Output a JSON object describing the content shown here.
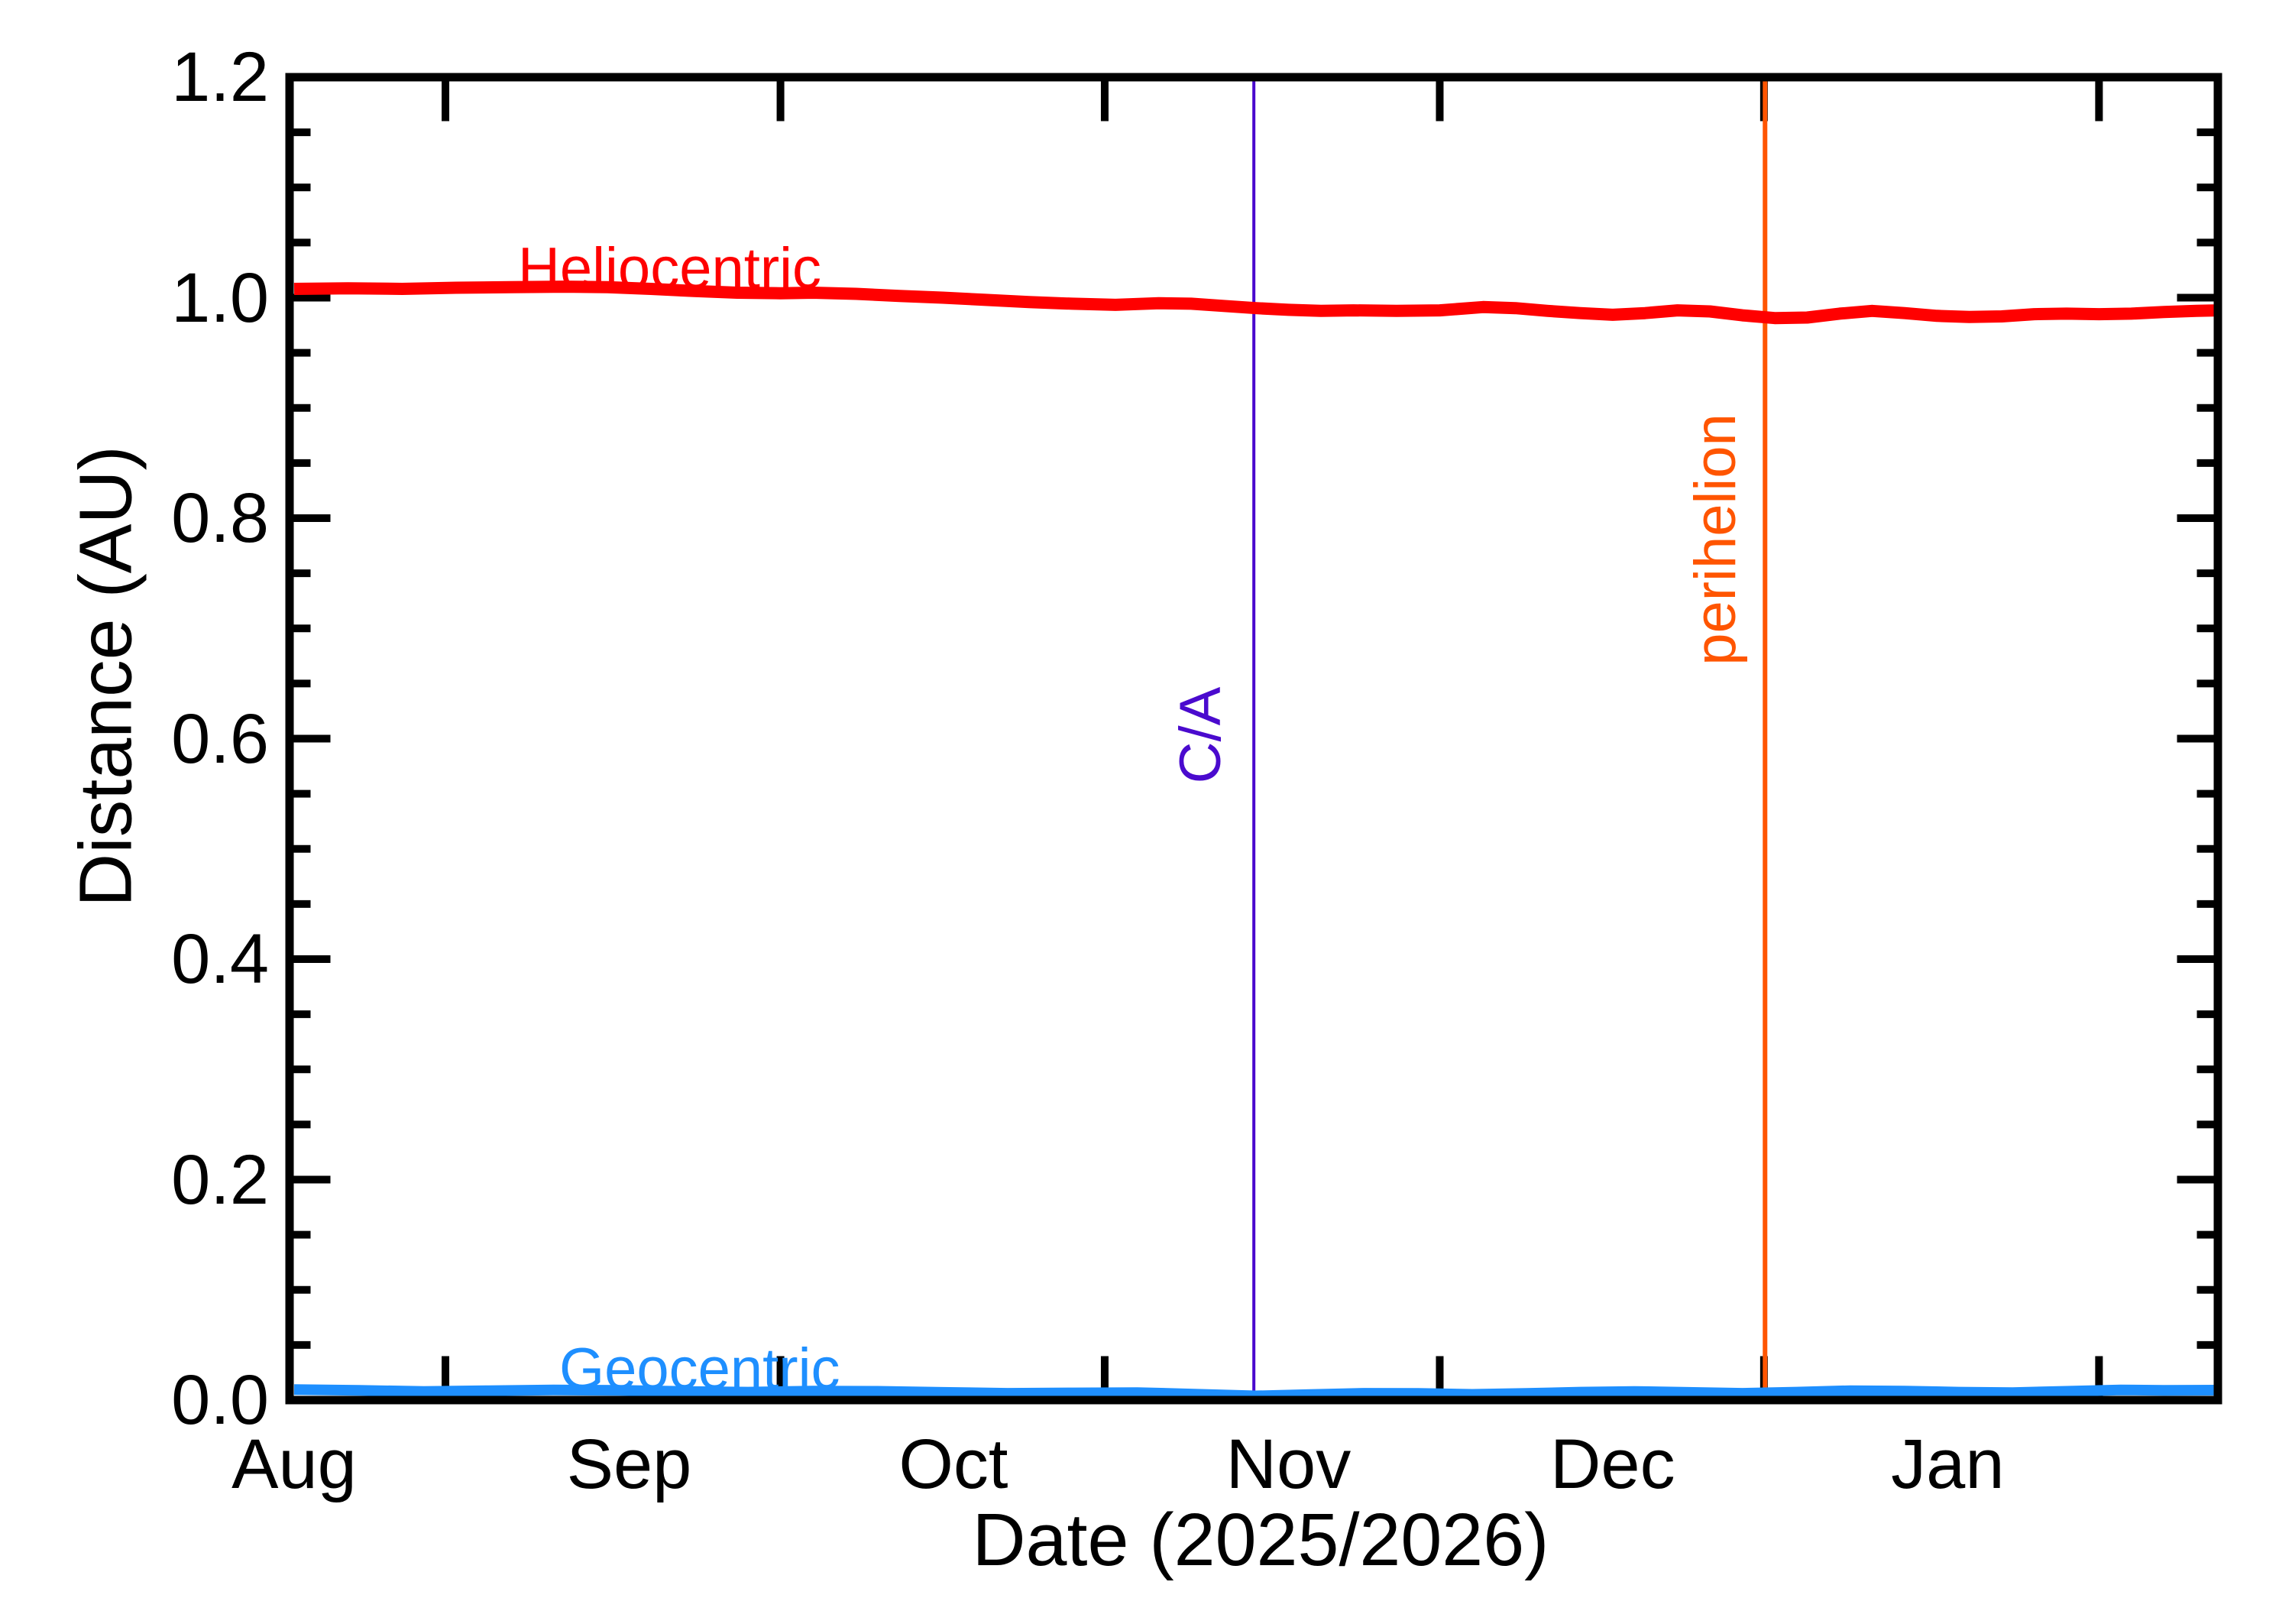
{
  "chart_data": {
    "type": "line",
    "title": "",
    "xlabel": "Date (2025/2026)",
    "ylabel": "Distance (AU)",
    "grid": "off",
    "legend": "inline-curve-labels",
    "x_axis": {
      "start": "Aug 1 2025",
      "end": "late Jan 2026",
      "unit": "day offset from Aug 1",
      "range_days": [
        0,
        178
      ],
      "month_labels": [
        {
          "label": "Aug",
          "day": 0
        },
        {
          "label": "Sep",
          "day": 31
        },
        {
          "label": "Oct",
          "day": 61
        },
        {
          "label": "Nov",
          "day": 92
        },
        {
          "label": "Dec",
          "day": 122
        },
        {
          "label": "Jan",
          "day": 153
        }
      ],
      "major_tick_days": [
        14,
        45,
        75,
        106,
        136,
        167
      ]
    },
    "y_axis": {
      "min": 0.0,
      "max": 1.2,
      "major_step": 0.2,
      "minor_step": 0.05,
      "tick_labels": [
        "0.0",
        "0.2",
        "0.4",
        "0.6",
        "0.8",
        "1.0",
        "1.2"
      ]
    },
    "series": [
      {
        "name": "Heliocentric",
        "color": "#ff0000",
        "stroke_width": 16,
        "points": [
          [
            0,
            1.008
          ],
          [
            5,
            1.0085
          ],
          [
            10,
            1.008
          ],
          [
            15,
            1.009
          ],
          [
            20,
            1.0095
          ],
          [
            25,
            1.01
          ],
          [
            29,
            1.0095
          ],
          [
            33,
            1.008
          ],
          [
            37,
            1.006
          ],
          [
            41,
            1.0045
          ],
          [
            45,
            1.004
          ],
          [
            48,
            1.0045
          ],
          [
            52,
            1.0035
          ],
          [
            56,
            1.0015
          ],
          [
            60,
            1.0
          ],
          [
            64,
            0.998
          ],
          [
            68,
            0.996
          ],
          [
            72,
            0.9945
          ],
          [
            76,
            0.9935
          ],
          [
            80,
            0.995
          ],
          [
            83,
            0.9945
          ],
          [
            86,
            0.9925
          ],
          [
            89,
            0.9905
          ],
          [
            92,
            0.989
          ],
          [
            95,
            0.988
          ],
          [
            98,
            0.9885
          ],
          [
            102,
            0.988
          ],
          [
            106,
            0.9885
          ],
          [
            110,
            0.9915
          ],
          [
            113,
            0.9905
          ],
          [
            116,
            0.988
          ],
          [
            119,
            0.986
          ],
          [
            122,
            0.9845
          ],
          [
            125,
            0.986
          ],
          [
            128,
            0.9885
          ],
          [
            131,
            0.9875
          ],
          [
            134,
            0.984
          ],
          [
            137,
            0.9815
          ],
          [
            140,
            0.982
          ],
          [
            143,
            0.9855
          ],
          [
            146,
            0.988
          ],
          [
            149,
            0.986
          ],
          [
            152,
            0.9835
          ],
          [
            155,
            0.9825
          ],
          [
            158,
            0.983
          ],
          [
            161,
            0.985
          ],
          [
            164,
            0.9855
          ],
          [
            167,
            0.985
          ],
          [
            170,
            0.9855
          ],
          [
            173,
            0.987
          ],
          [
            176,
            0.988
          ],
          [
            178,
            0.9885
          ]
        ]
      },
      {
        "name": "Geocentric",
        "color": "#1e8fff",
        "stroke_width": 14,
        "points": [
          [
            0,
            0.0095
          ],
          [
            6,
            0.0088
          ],
          [
            12,
            0.0078
          ],
          [
            18,
            0.0085
          ],
          [
            24,
            0.0092
          ],
          [
            30,
            0.0088
          ],
          [
            36,
            0.0078
          ],
          [
            42,
            0.0072
          ],
          [
            48,
            0.0082
          ],
          [
            54,
            0.008
          ],
          [
            60,
            0.007
          ],
          [
            66,
            0.0062
          ],
          [
            72,
            0.0065
          ],
          [
            78,
            0.0068
          ],
          [
            83,
            0.0055
          ],
          [
            89,
            0.0038
          ],
          [
            94,
            0.005
          ],
          [
            99,
            0.0062
          ],
          [
            104,
            0.006
          ],
          [
            109,
            0.0052
          ],
          [
            114,
            0.006
          ],
          [
            119,
            0.0072
          ],
          [
            124,
            0.0078
          ],
          [
            129,
            0.007
          ],
          [
            134,
            0.0062
          ],
          [
            139,
            0.0072
          ],
          [
            144,
            0.0085
          ],
          [
            149,
            0.0082
          ],
          [
            154,
            0.0072
          ],
          [
            159,
            0.0068
          ],
          [
            164,
            0.008
          ],
          [
            169,
            0.0092
          ],
          [
            173,
            0.0088
          ],
          [
            178,
            0.009
          ]
        ]
      }
    ],
    "events": [
      {
        "name": "C/A",
        "day": 88.8,
        "color": "#4a0ace",
        "stroke_width": 4
      },
      {
        "name": "perihelion",
        "day": 136.1,
        "color": "#ff5500",
        "stroke_width": 6
      }
    ]
  },
  "annotations": {
    "heliocentric_label": {
      "text": "Heliocentric",
      "color": "#ff0000"
    },
    "geocentric_label": {
      "text": "Geocentric",
      "color": "#1e8fff"
    },
    "ca_label": {
      "text": "C/A",
      "color": "#4a0ace"
    },
    "perihelion_label": {
      "text": "perihelion",
      "color": "#ff5500"
    }
  },
  "colors": {
    "axis": "#000000",
    "background": "#ffffff",
    "heliocentric": "#ff0000",
    "geocentric": "#1e8fff",
    "close_approach": "#4a0ace",
    "perihelion": "#ff5500"
  }
}
